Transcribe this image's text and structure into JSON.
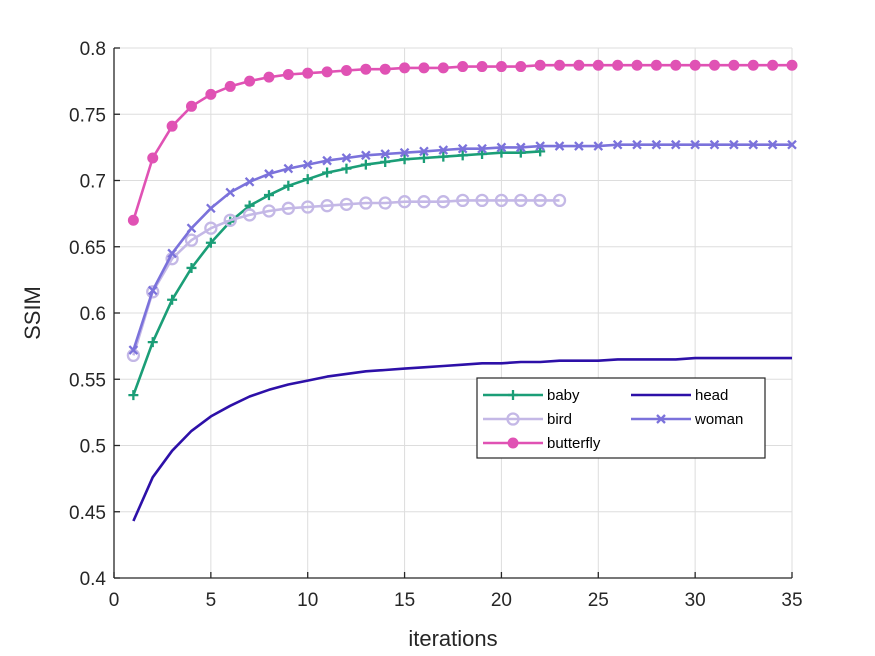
{
  "chart_data": {
    "type": "line",
    "title": "",
    "xlabel": "iterations",
    "ylabel": "SSIM",
    "xlim": [
      0,
      35
    ],
    "ylim": [
      0.4,
      0.8
    ],
    "xticks": [
      0,
      5,
      10,
      15,
      20,
      25,
      30,
      35
    ],
    "yticks": [
      0.4,
      0.45,
      0.5,
      0.55,
      0.6,
      0.65,
      0.7,
      0.75,
      0.8
    ],
    "xtick_labels": [
      "0",
      "5",
      "10",
      "15",
      "20",
      "25",
      "30",
      "35"
    ],
    "ytick_labels": [
      "0.4",
      "0.45",
      "0.5",
      "0.55",
      "0.6",
      "0.65",
      "0.7",
      "0.75",
      "0.8"
    ],
    "grid": true,
    "legend_position": "lower-right",
    "series": [
      {
        "name": "baby",
        "color": "#1b9e77",
        "marker": "plus",
        "x": [
          1,
          2,
          3,
          4,
          5,
          6,
          7,
          8,
          9,
          10,
          11,
          12,
          13,
          14,
          15,
          16,
          17,
          18,
          19,
          20,
          21,
          22
        ],
        "values": [
          0.538,
          0.578,
          0.61,
          0.634,
          0.653,
          0.669,
          0.681,
          0.689,
          0.696,
          0.701,
          0.706,
          0.709,
          0.712,
          0.714,
          0.716,
          0.717,
          0.718,
          0.719,
          0.72,
          0.721,
          0.721,
          0.722
        ]
      },
      {
        "name": "bird",
        "color": "#c4b8e6",
        "marker": "circle-open",
        "x": [
          1,
          2,
          3,
          4,
          5,
          6,
          7,
          8,
          9,
          10,
          11,
          12,
          13,
          14,
          15,
          16,
          17,
          18,
          19,
          20,
          21,
          22,
          23
        ],
        "values": [
          0.568,
          0.616,
          0.641,
          0.655,
          0.664,
          0.67,
          0.674,
          0.677,
          0.679,
          0.68,
          0.681,
          0.682,
          0.683,
          0.683,
          0.684,
          0.684,
          0.684,
          0.685,
          0.685,
          0.685,
          0.685,
          0.685,
          0.685
        ]
      },
      {
        "name": "butterfly",
        "color": "#e052b4",
        "marker": "circle-filled",
        "x": [
          1,
          2,
          3,
          4,
          5,
          6,
          7,
          8,
          9,
          10,
          11,
          12,
          13,
          14,
          15,
          16,
          17,
          18,
          19,
          20,
          21,
          22,
          23,
          24,
          25,
          26,
          27,
          28,
          29,
          30,
          31,
          32,
          33,
          34,
          35
        ],
        "values": [
          0.67,
          0.717,
          0.741,
          0.756,
          0.765,
          0.771,
          0.775,
          0.778,
          0.78,
          0.781,
          0.782,
          0.783,
          0.784,
          0.784,
          0.785,
          0.785,
          0.785,
          0.786,
          0.786,
          0.786,
          0.786,
          0.787,
          0.787,
          0.787,
          0.787,
          0.787,
          0.787,
          0.787,
          0.787,
          0.787,
          0.787,
          0.787,
          0.787,
          0.787,
          0.787
        ]
      },
      {
        "name": "head",
        "color": "#2d10a8",
        "marker": "none",
        "x": [
          1,
          2,
          3,
          4,
          5,
          6,
          7,
          8,
          9,
          10,
          11,
          12,
          13,
          14,
          15,
          16,
          17,
          18,
          19,
          20,
          21,
          22,
          23,
          24,
          25,
          26,
          27,
          28,
          29,
          30,
          31,
          32,
          33,
          34,
          35
        ],
        "values": [
          0.443,
          0.476,
          0.496,
          0.511,
          0.522,
          0.53,
          0.537,
          0.542,
          0.546,
          0.549,
          0.552,
          0.554,
          0.556,
          0.557,
          0.558,
          0.559,
          0.56,
          0.561,
          0.562,
          0.562,
          0.563,
          0.563,
          0.564,
          0.564,
          0.564,
          0.565,
          0.565,
          0.565,
          0.565,
          0.566,
          0.566,
          0.566,
          0.566,
          0.566,
          0.566
        ]
      },
      {
        "name": "woman",
        "color": "#7b72db",
        "marker": "x",
        "x": [
          1,
          2,
          3,
          4,
          5,
          6,
          7,
          8,
          9,
          10,
          11,
          12,
          13,
          14,
          15,
          16,
          17,
          18,
          19,
          20,
          21,
          22,
          23,
          24,
          25,
          26,
          27,
          28,
          29,
          30,
          31,
          32,
          33,
          34,
          35
        ],
        "values": [
          0.572,
          0.617,
          0.645,
          0.664,
          0.679,
          0.691,
          0.699,
          0.705,
          0.709,
          0.712,
          0.715,
          0.717,
          0.719,
          0.72,
          0.721,
          0.722,
          0.723,
          0.724,
          0.724,
          0.725,
          0.725,
          0.726,
          0.726,
          0.726,
          0.726,
          0.727,
          0.727,
          0.727,
          0.727,
          0.727,
          0.727,
          0.727,
          0.727,
          0.727,
          0.727
        ]
      }
    ]
  }
}
